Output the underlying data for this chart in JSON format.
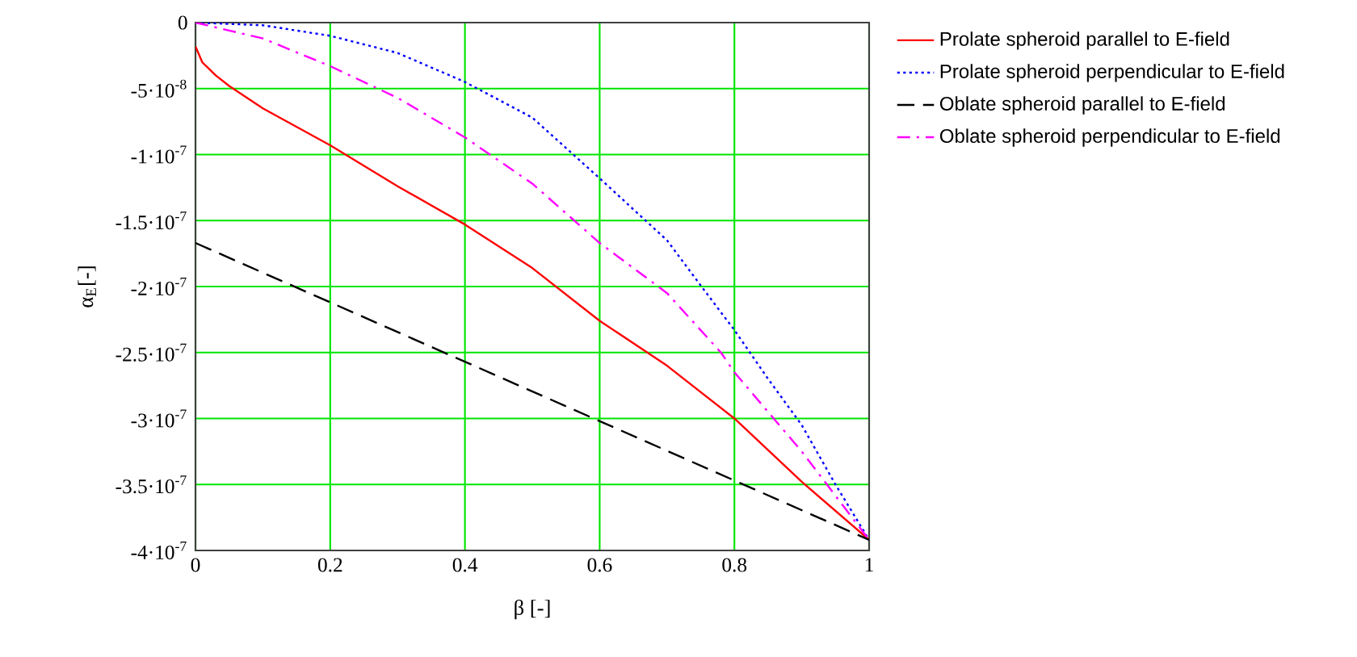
{
  "chart_data": {
    "type": "line",
    "xlabel": "β [-]",
    "ylabel": "α$_{E}$[-]",
    "xlim": [
      0,
      1
    ],
    "ylim": [
      -4e-07,
      0
    ],
    "xticks": [
      0,
      0.2,
      0.4,
      0.6,
      0.8,
      1
    ],
    "yticks": [
      {
        "value": -4e-07,
        "label": "-4·10$^{-7}$"
      },
      {
        "value": -3.5e-07,
        "label": "-3.5·10$^{-7}$"
      },
      {
        "value": -3e-07,
        "label": "-3·10$^{-7}$"
      },
      {
        "value": -2.5e-07,
        "label": "-2.5·10$^{-7}$"
      },
      {
        "value": -2e-07,
        "label": "-2·10$^{-7}$"
      },
      {
        "value": -1.5e-07,
        "label": "-1.5·10$^{-7}$"
      },
      {
        "value": -1e-07,
        "label": "-1·10$^{-7}$"
      },
      {
        "value": -5e-08,
        "label": "-5·10$^{-8}$"
      },
      0
    ],
    "grid": true,
    "legend": "right",
    "series": [
      {
        "name": "Prolate spheroid parallel to E-field",
        "color": "#ff0000",
        "line_style": "solid",
        "x": [
          0,
          0.01,
          0.03,
          0.05,
          0.1,
          0.2,
          0.3,
          0.4,
          0.5,
          0.6,
          0.7,
          0.8,
          0.9,
          1
        ],
        "values": [
          -1.8e-08,
          -3e-08,
          -4e-08,
          -4.8e-08,
          -6.5e-08,
          -9.3e-08,
          -1.24e-07,
          -1.53e-07,
          -1.86e-07,
          -2.26e-07,
          -2.6e-07,
          -3e-07,
          -3.48e-07,
          -3.92e-07
        ]
      },
      {
        "name": "Prolate spheroid perpendicular to E-field",
        "color": "#0000ff",
        "line_style": "dotted",
        "x": [
          0,
          0.1,
          0.2,
          0.3,
          0.4,
          0.5,
          0.6,
          0.7,
          0.76,
          0.8,
          0.85,
          0.9,
          0.95,
          1
        ],
        "values": [
          0,
          -2e-09,
          -1e-08,
          -2.3e-08,
          -4.5e-08,
          -7.2e-08,
          -1.18e-07,
          -1.65e-07,
          -2.06e-07,
          -2.33e-07,
          -2.7e-07,
          -3.05e-07,
          -3.5e-07,
          -3.92e-07
        ]
      },
      {
        "name": "Oblate spheroid parallel to E-field",
        "color": "#000000",
        "line_style": "dashed",
        "x": [
          0,
          1
        ],
        "values": [
          -1.67e-07,
          -3.92e-07
        ]
      },
      {
        "name": "Oblate spheroid perpendicular to E-field",
        "color": "#ff00ff",
        "line_style": "dashdot",
        "x": [
          0,
          0.1,
          0.2,
          0.3,
          0.4,
          0.5,
          0.6,
          0.7,
          0.78,
          0.8,
          0.9,
          1
        ],
        "values": [
          0,
          -1.2e-08,
          -3.3e-08,
          -5.7e-08,
          -8.7e-08,
          -1.22e-07,
          -1.67e-07,
          -2.05e-07,
          -2.5e-07,
          -2.65e-07,
          -3.25e-07,
          -3.92e-07
        ]
      }
    ]
  }
}
